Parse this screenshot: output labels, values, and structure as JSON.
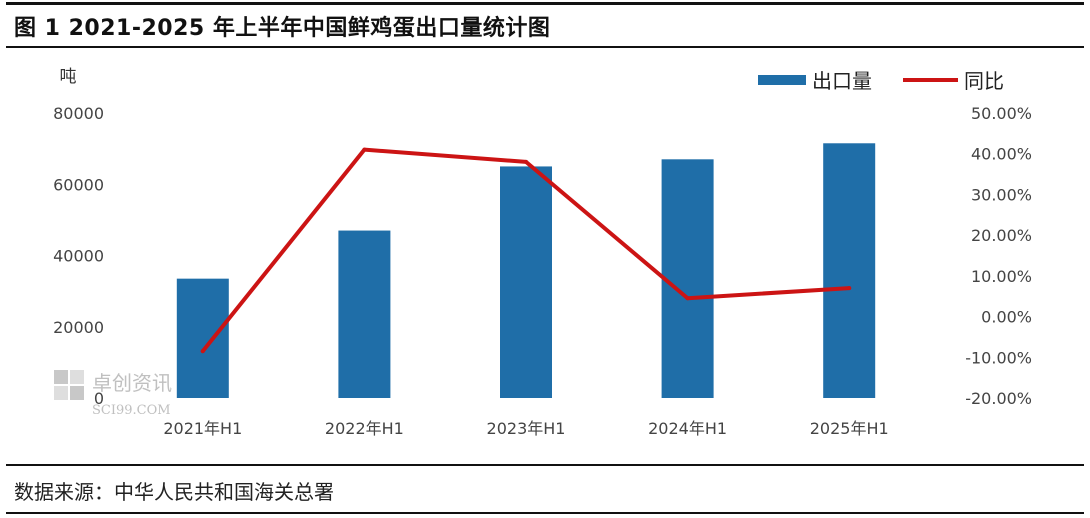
{
  "header": {
    "title": "图 1 2021-2025 年上半年中国鲜鸡蛋出口量统计图"
  },
  "footer": {
    "source": "数据来源：中华人民共和国海关总署"
  },
  "watermark": {
    "cn": "卓创资讯",
    "en": "SCI99.COM"
  },
  "chart_data": {
    "type": "bar",
    "title": "",
    "categories": [
      "2021年H1",
      "2022年H1",
      "2023年H1",
      "2024年H1",
      "2025年H1"
    ],
    "series": [
      {
        "name": "出口量",
        "type": "bar",
        "axis": "left",
        "color": "#1f6ea8",
        "values": [
          33500,
          47000,
          65000,
          67000,
          71500
        ]
      },
      {
        "name": "同比",
        "type": "line",
        "axis": "right",
        "color": "#cc1414",
        "values": [
          -8.5,
          41.0,
          38.0,
          4.5,
          7.0
        ]
      }
    ],
    "left_axis": {
      "unit": "吨",
      "ylim": [
        0,
        80000
      ],
      "ticks": [
        "0",
        "20000",
        "40000",
        "60000",
        "80000"
      ]
    },
    "right_axis": {
      "ylim": [
        -20,
        50
      ],
      "ticks": [
        "-20.00%",
        "-10.00%",
        "0.00%",
        "10.00%",
        "20.00%",
        "30.00%",
        "40.00%",
        "50.00%"
      ]
    },
    "legend": {
      "position": "top-right",
      "items": [
        "出口量",
        "同比"
      ]
    },
    "grid": false
  }
}
